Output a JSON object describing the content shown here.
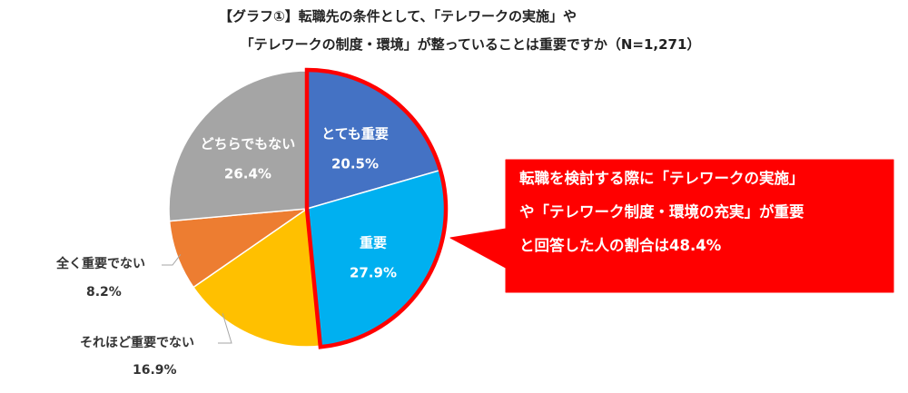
{
  "title": {
    "line1": "【グラフ①】転職先の条件として、「テレワークの実施」や",
    "line2": "「テレワークの制度・環境」が整っていることは重要ですか（N=1,271）"
  },
  "chart_data": {
    "type": "pie",
    "title": "【グラフ①】転職先の条件として、「テレワークの実施」や「テレワークの制度・環境」が整っていることは重要ですか（N=1,271）",
    "slices": [
      {
        "label": "とても重要",
        "value": 20.5,
        "display": "20.5%",
        "color": "#4472c4"
      },
      {
        "label": "重要",
        "value": 27.9,
        "display": "27.9%",
        "color": "#00b0f0"
      },
      {
        "label": "それほど重要でない",
        "value": 16.9,
        "display": "16.9%",
        "color": "#ffc000"
      },
      {
        "label": "全く重要でない",
        "value": 8.2,
        "display": "8.2%",
        "color": "#ed7d31"
      },
      {
        "label": "どちらでもない",
        "value": 26.4,
        "display": "26.4%",
        "color": "#a5a5a5"
      }
    ],
    "highlight": {
      "slices": [
        "とても重要",
        "重要"
      ],
      "outline_color": "#ff0000"
    }
  },
  "callout": {
    "line1": "転職を検討する際に「テレワークの実施」",
    "line2": "や「テレワーク制度・環境の充実」が重要",
    "line3": "と回答した人の割合は48.4%",
    "color": "#ff0000"
  }
}
